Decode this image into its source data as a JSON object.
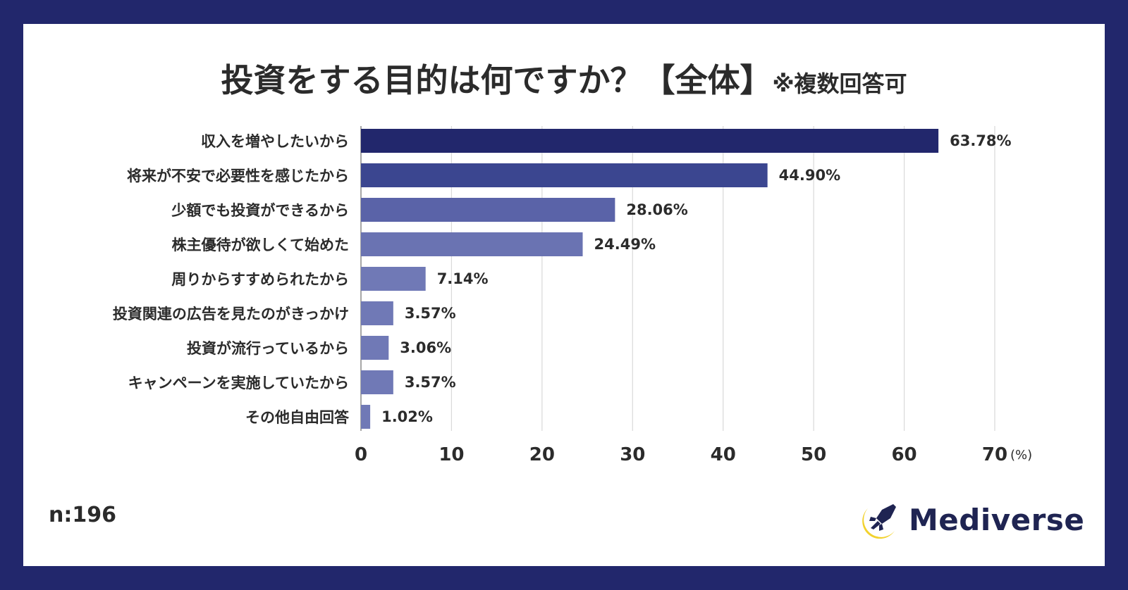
{
  "title": {
    "main": "投資をする目的は何ですか？【全体】",
    "note": "※複数回答可"
  },
  "chart_data": {
    "type": "bar",
    "orientation": "horizontal",
    "categories": [
      "収入を増やしたいから",
      "将来が不安で必要性を感じたから",
      "少額でも投資ができるから",
      "株主優待が欲しくて始めた",
      "周りからすすめられたから",
      "投資関連の広告を見たのがきっかけ",
      "投資が流行っているから",
      "キャンペーンを実施していたから",
      "その他自由回答"
    ],
    "values": [
      63.78,
      44.9,
      28.06,
      24.49,
      7.14,
      3.57,
      3.06,
      3.57,
      1.02
    ],
    "value_labels": [
      "63.78%",
      "44.90%",
      "28.06%",
      "24.49%",
      "7.14%",
      "3.57%",
      "3.06%",
      "3.57%",
      "1.02%"
    ],
    "colors": [
      "#22276c",
      "#3b4690",
      "#5a63a8",
      "#6a73b2",
      "#7079b6",
      "#7079b6",
      "#7079b6",
      "#7079b6",
      "#7079b6"
    ],
    "xlim": [
      0,
      70
    ],
    "xticks": [
      0,
      10,
      20,
      30,
      40,
      50,
      60,
      70
    ],
    "xtick_labels": [
      "0",
      "10",
      "20",
      "30",
      "40",
      "50",
      "60",
      "70"
    ],
    "xunit": "(%)",
    "grid": true
  },
  "footer": {
    "n_label": "n:196",
    "brand": "Mediverse"
  },
  "colors": {
    "background": "#22276c",
    "card": "#ffffff",
    "grid": "#d9d9d9",
    "text": "#2b2b2b",
    "brand_accent": "#f2d22e",
    "brand_text": "#1f2452"
  }
}
